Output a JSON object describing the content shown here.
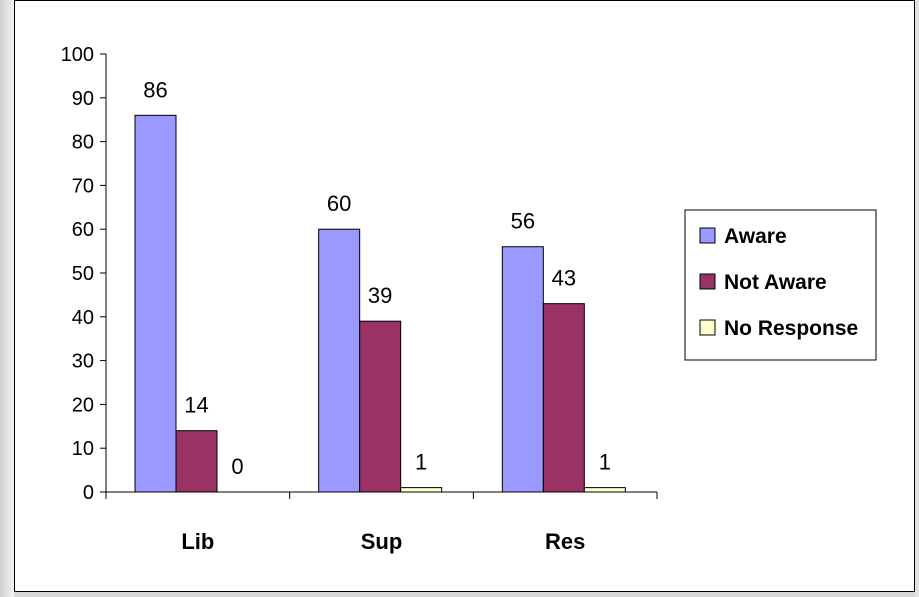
{
  "chart_data": {
    "type": "bar",
    "title": "",
    "xlabel": "",
    "ylabel": "",
    "categories": [
      "Lib",
      "Sup",
      "Res"
    ],
    "series": [
      {
        "name": "Aware",
        "values": [
          86,
          60,
          56
        ],
        "color": "#9999ff"
      },
      {
        "name": "Not Aware",
        "values": [
          14,
          39,
          43
        ],
        "color": "#993366"
      },
      {
        "name": "No Response",
        "values": [
          0,
          1,
          1
        ],
        "color": "#ffffcc"
      }
    ],
    "ylim": [
      0,
      100
    ],
    "yticks": [
      "0",
      "10",
      "20",
      "30",
      "40",
      "50",
      "60",
      "70",
      "80",
      "90",
      "100"
    ],
    "grid": false,
    "legend_position": "right",
    "data_labels": true
  }
}
